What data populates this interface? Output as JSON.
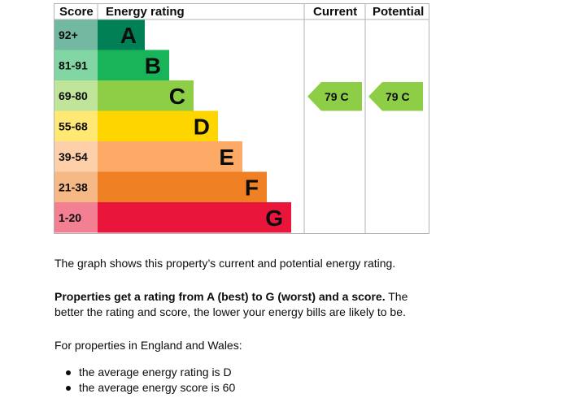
{
  "chart_data": {
    "type": "bar",
    "columns": {
      "score": "Score",
      "rating": "Energy rating",
      "current": "Current",
      "potential": "Potential"
    },
    "bands": [
      {
        "score": "92+",
        "letter": "A",
        "color": "#008054"
      },
      {
        "score": "81-91",
        "letter": "B",
        "color": "#19b459"
      },
      {
        "score": "69-80",
        "letter": "C",
        "color": "#8dce46"
      },
      {
        "score": "55-68",
        "letter": "D",
        "color": "#ffd500"
      },
      {
        "score": "39-54",
        "letter": "E",
        "color": "#fcaa65"
      },
      {
        "score": "21-38",
        "letter": "F",
        "color": "#ef8023"
      },
      {
        "score": "1-20",
        "letter": "G",
        "color": "#e9153b"
      }
    ],
    "current": {
      "value": 79,
      "band": "C",
      "label": "79  C"
    },
    "potential": {
      "value": 79,
      "band": "C",
      "label": "79  C"
    }
  },
  "text": {
    "intro": "The graph shows this property’s current and potential energy rating.",
    "bold": "Properties get a rating from A (best) to G (worst) and a score.",
    "rest": " The better the rating and score, the lower your energy bills are likely to be.",
    "england": "For properties in England and Wales:",
    "bullets": [
      "the average energy rating is D",
      "the average energy score is 60"
    ]
  }
}
